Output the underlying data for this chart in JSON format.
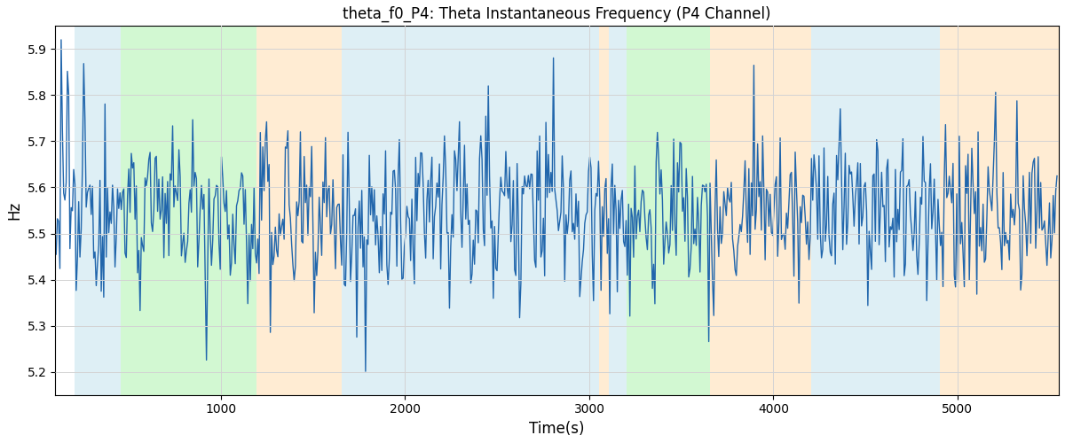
{
  "title": "theta_f0_P4: Theta Instantaneous Frequency (P4 Channel)",
  "xlabel": "Time(s)",
  "ylabel": "Hz",
  "ylim": [
    5.15,
    5.95
  ],
  "xlim": [
    100,
    5550
  ],
  "line_color": "#2166ac",
  "line_width": 1.0,
  "bg_regions": [
    {
      "start": 205,
      "end": 455,
      "color": "#add8e6",
      "alpha": 0.4
    },
    {
      "start": 455,
      "end": 1195,
      "color": "#90ee90",
      "alpha": 0.4
    },
    {
      "start": 1195,
      "end": 1655,
      "color": "#ffd59e",
      "alpha": 0.45
    },
    {
      "start": 1655,
      "end": 3055,
      "color": "#add8e6",
      "alpha": 0.4
    },
    {
      "start": 3055,
      "end": 3105,
      "color": "#ffd59e",
      "alpha": 0.45
    },
    {
      "start": 3105,
      "end": 3205,
      "color": "#add8e6",
      "alpha": 0.4
    },
    {
      "start": 3205,
      "end": 3655,
      "color": "#90ee90",
      "alpha": 0.4
    },
    {
      "start": 3655,
      "end": 4205,
      "color": "#ffd59e",
      "alpha": 0.45
    },
    {
      "start": 4205,
      "end": 4905,
      "color": "#add8e6",
      "alpha": 0.4
    },
    {
      "start": 4905,
      "end": 5550,
      "color": "#ffd59e",
      "alpha": 0.45
    }
  ],
  "seed": 12345,
  "n_points": 800,
  "t_start": 105,
  "t_end": 5540,
  "mean_freq": 5.545,
  "title_fontsize": 12,
  "figsize": [
    12.0,
    5.0
  ],
  "dpi": 100
}
